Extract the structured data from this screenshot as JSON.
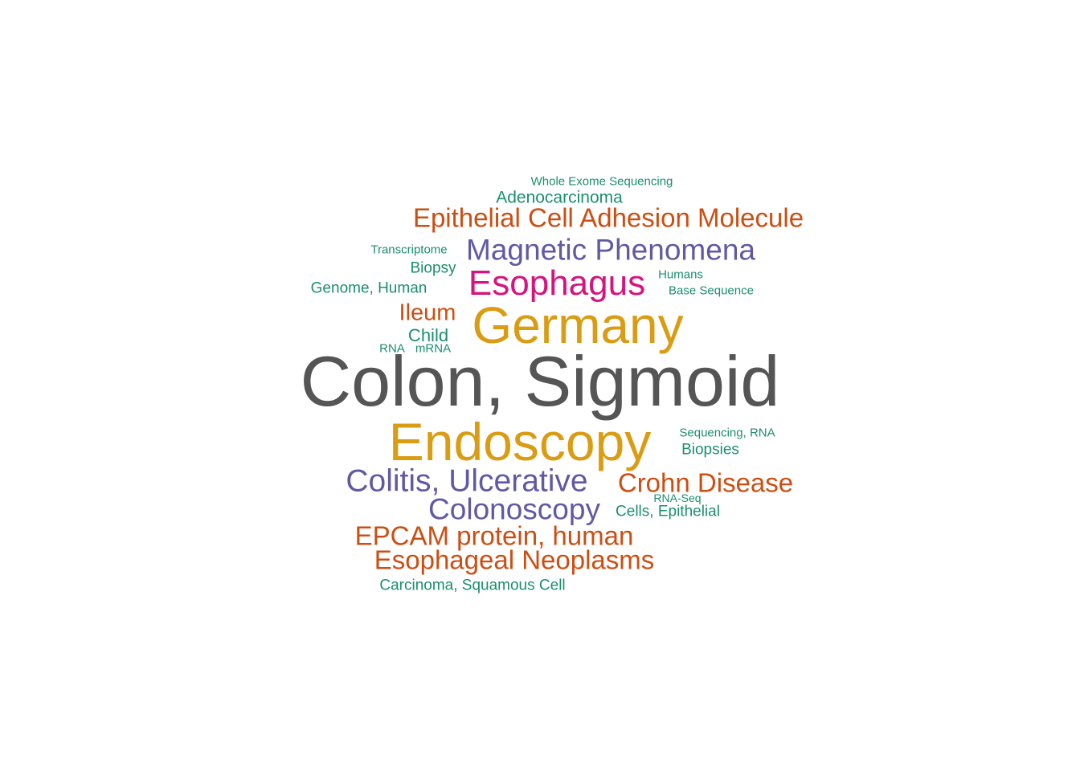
{
  "colors": {
    "gray": "#555555",
    "gold": "#DA9C12",
    "purple": "#6059A4",
    "magenta": "#D6137E",
    "orange": "#CD4E12",
    "teal": "#1B8E6E"
  },
  "words": [
    {
      "text": "Colon, Sigmoid",
      "color": "gray"
    },
    {
      "text": "Germany",
      "color": "gold"
    },
    {
      "text": "Endoscopy",
      "color": "gold"
    },
    {
      "text": "Esophagus",
      "color": "magenta"
    },
    {
      "text": "Magnetic Phenomena",
      "color": "purple"
    },
    {
      "text": "Colitis, Ulcerative",
      "color": "purple"
    },
    {
      "text": "Colonoscopy",
      "color": "purple"
    },
    {
      "text": "Epithelial Cell Adhesion Molecule",
      "color": "orange"
    },
    {
      "text": "Crohn Disease",
      "color": "orange"
    },
    {
      "text": "EPCAM protein, human",
      "color": "orange"
    },
    {
      "text": "Esophageal Neoplasms",
      "color": "orange"
    },
    {
      "text": "Ileum",
      "color": "orange"
    },
    {
      "text": "Adenocarcinoma",
      "color": "teal"
    },
    {
      "text": "Whole Exome Sequencing",
      "color": "teal"
    },
    {
      "text": "Transcriptome",
      "color": "teal"
    },
    {
      "text": "Biopsy",
      "color": "teal"
    },
    {
      "text": "Genome, Human",
      "color": "teal"
    },
    {
      "text": "Humans",
      "color": "teal"
    },
    {
      "text": "Base Sequence",
      "color": "teal"
    },
    {
      "text": "Child",
      "color": "teal"
    },
    {
      "text": "RNA",
      "color": "teal"
    },
    {
      "text": "mRNA",
      "color": "teal"
    },
    {
      "text": "Sequencing, RNA",
      "color": "teal"
    },
    {
      "text": "Biopsies",
      "color": "teal"
    },
    {
      "text": "RNA-Seq",
      "color": "teal"
    },
    {
      "text": "Cells, Epithelial",
      "color": "teal"
    },
    {
      "text": "Carcinoma, Squamous Cell",
      "color": "teal"
    }
  ]
}
